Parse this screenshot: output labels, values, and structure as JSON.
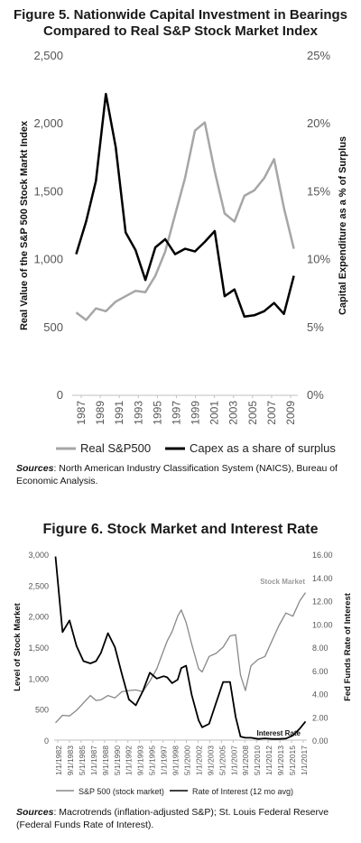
{
  "chart_data": [
    {
      "type": "line",
      "title": "Figure 5. Nationwide Capital Investment in Bearings Compared to Real S&P Stock Market Index",
      "title_lines": [
        "Figure 5. Nationwide Capital Investment in Bearings",
        "Compared to Real S&P Stock Market Index"
      ],
      "ylabel": "Real Value of the S&P 500 Stock Markt Index",
      "y2label": "Capital Expenditure as a % of Surplus",
      "ylim": [
        0,
        2500
      ],
      "y2lim": [
        0,
        25
      ],
      "yticks": [
        "0",
        "500",
        "1,000",
        "1,500",
        "2,000",
        "2,500"
      ],
      "y2ticks": [
        "0%",
        "5%",
        "10%",
        "15%",
        "20%",
        "25%"
      ],
      "xticks": [
        "1987",
        "1989",
        "1991",
        "1993",
        "1995",
        "1997",
        "1999",
        "2001",
        "2003",
        "2005",
        "2007",
        "2009"
      ],
      "x": [
        1987,
        1988,
        1989,
        1990,
        1991,
        1992,
        1993,
        1994,
        1995,
        1996,
        1997,
        1998,
        1999,
        2000,
        2001,
        2002,
        2003,
        2004,
        2005,
        2006,
        2007,
        2008,
        2009
      ],
      "series": [
        {
          "name": "Real S&P500",
          "axis": "left",
          "color": "#a6a6a6",
          "values": [
            610,
            555,
            640,
            620,
            690,
            730,
            770,
            760,
            880,
            1060,
            1330,
            1600,
            1950,
            2010,
            1650,
            1340,
            1280,
            1470,
            1510,
            1600,
            1740,
            1380,
            1080
          ]
        },
        {
          "name": "Capex as a share of surplus",
          "axis": "right",
          "color": "#000000",
          "values": [
            10.4,
            12.8,
            15.8,
            22.2,
            18.3,
            12.0,
            10.7,
            8.5,
            10.9,
            11.5,
            10.4,
            10.8,
            10.6,
            11.3,
            12.1,
            7.3,
            7.8,
            5.8,
            5.9,
            6.2,
            6.8,
            6.0,
            8.8
          ]
        }
      ],
      "legend": "bottom"
    },
    {
      "type": "line",
      "title": "Figure 6. Stock Market and Interest Rate",
      "ylabel": "Level of Stock Market",
      "y2label": "Fed Funds Rate of Interest",
      "ylim": [
        0,
        3000
      ],
      "y2lim": [
        0,
        16
      ],
      "yticks": [
        "0",
        "500",
        "1,000",
        "1,500",
        "2,000",
        "2,500",
        "3,000"
      ],
      "y2ticks": [
        "0.00",
        "2.00",
        "4.00",
        "6.00",
        "8.00",
        "10.00",
        "12.00",
        "14.00",
        "16.00"
      ],
      "xticks": [
        "1/1/1982",
        "9/1/1983",
        "5/1/1985",
        "1/1/1987",
        "9/1/1988",
        "5/1/1990",
        "1/1/1992",
        "9/1/1993",
        "5/1/1995",
        "1/1/1997",
        "9/1/1998",
        "5/1/2000",
        "1/1/2002",
        "9/1/2003",
        "5/1/2005",
        "1/1/2007",
        "9/1/2008",
        "5/1/2010",
        "1/1/2012",
        "9/1/2013",
        "5/1/2015",
        "1/1/2017"
      ],
      "annotations": [
        "Stock Market",
        "Interest Rate"
      ],
      "x": [
        1982.0,
        1983.0,
        1984.0,
        1985.0,
        1986.0,
        1987.0,
        1987.8,
        1988.5,
        1989.5,
        1990.5,
        1991.5,
        1992.5,
        1993.5,
        1994.5,
        1995.5,
        1996.5,
        1997.5,
        1998.0,
        1998.7,
        1999.5,
        2000.0,
        2000.7,
        2001.5,
        2002.5,
        2003.0,
        2004.0,
        2005.0,
        2006.0,
        2007.0,
        2007.8,
        2008.5,
        2009.2,
        2010.0,
        2011.0,
        2012.0,
        2013.0,
        2014.0,
        2015.0,
        2016.0,
        2017.0,
        2017.8
      ],
      "series": [
        {
          "name": "S&P 500 (stock market)",
          "axis": "left",
          "color": "#888888",
          "values": [
            280,
            400,
            390,
            480,
            600,
            720,
            640,
            650,
            720,
            680,
            780,
            800,
            810,
            780,
            950,
            1150,
            1450,
            1600,
            1750,
            2000,
            2100,
            1900,
            1550,
            1150,
            1100,
            1350,
            1400,
            1500,
            1680,
            1700,
            1050,
            800,
            1200,
            1300,
            1350,
            1600,
            1850,
            2050,
            2000,
            2250,
            2380
          ]
        },
        {
          "name": "Rate of Interest (12 mo avg)",
          "axis": "right",
          "color": "#000000",
          "values": [
            15.8,
            9.3,
            10.3,
            8.1,
            6.8,
            6.6,
            6.8,
            7.5,
            9.2,
            8.0,
            5.7,
            3.5,
            3.0,
            4.2,
            5.8,
            5.3,
            5.5,
            5.4,
            4.9,
            5.2,
            6.2,
            6.4,
            3.9,
            1.7,
            1.1,
            1.4,
            3.2,
            5.0,
            5.0,
            2.0,
            0.3,
            0.2,
            0.2,
            0.1,
            0.15,
            0.1,
            0.1,
            0.13,
            0.4,
            1.0,
            1.6
          ]
        }
      ],
      "legend": "bottom"
    }
  ],
  "fig5": {
    "sources_label": "Sources",
    "sources_text": ": North American Industry Classification System (NAICS), Bureau of Economic Analysis."
  },
  "fig6": {
    "sources_label": "Sources",
    "sources_text": ": Macrotrends (inflation-adjusted S&P); St. Louis Federal Reserve (Federal Funds Rate of Interest)."
  }
}
